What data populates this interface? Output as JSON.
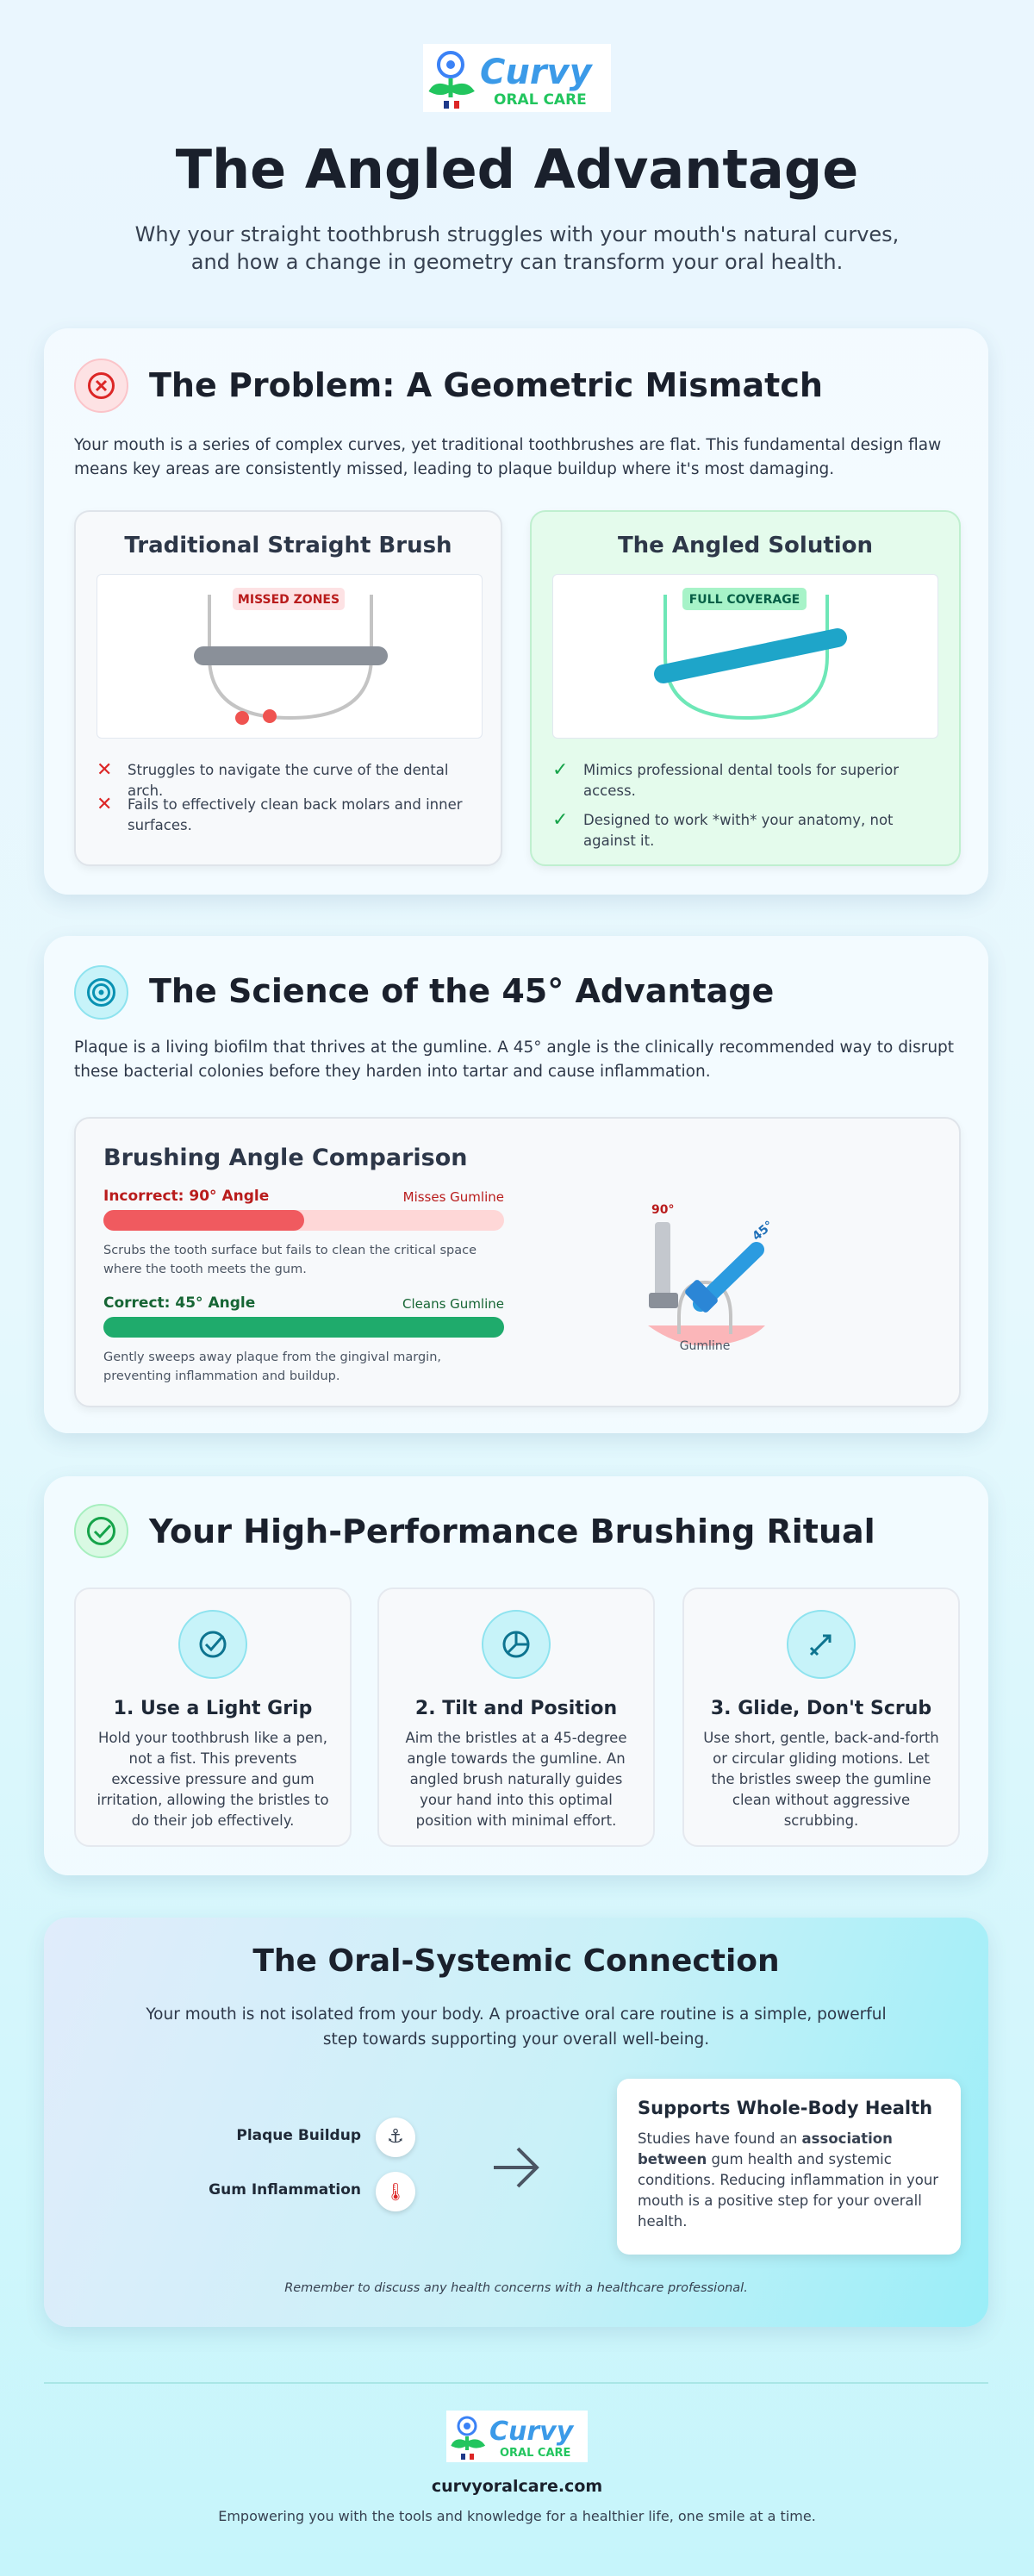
{
  "header": {
    "logo": {
      "brand": "Curvy",
      "sub": "ORAL CARE"
    },
    "title": "The Angled Advantage",
    "subtitle": [
      "Why your straight toothbrush struggles with your mouth's natural curves,",
      "and how a change in geometry can transform your oral health."
    ]
  },
  "problem": {
    "title": "The Problem: A Geometric Mismatch",
    "text": "Your mouth is a series of complex curves, yet traditional toothbrushes are flat. This fundamental design flaw means key areas are consistently missed, leading to plaque buildup where it's most damaging.",
    "traditional": {
      "title": "Traditional Straight Brush",
      "badge": "MISSED ZONES",
      "points": [
        "Struggles to navigate the curve of the dental arch.",
        "Fails to effectively clean back molars and inner surfaces."
      ]
    },
    "angled": {
      "title": "The Angled Solution",
      "badge": "FULL COVERAGE",
      "points": [
        "Mimics professional dental tools for superior access.",
        "Designed to work *with* your anatomy, not against it."
      ]
    }
  },
  "science": {
    "title": "The Science of the 45° Advantage",
    "text": "Plaque is a living biofilm that thrives at the gumline. A 45° angle is the clinically recommended way to disrupt these bacterial colonies before they harden into tartar and cause inflammation.",
    "comparison": {
      "title": "Brushing Angle Comparison",
      "incorrect": {
        "label": "Incorrect: 90° Angle",
        "note": "Misses Gumline",
        "description": "Scrubs the tooth surface but fails to clean the critical space where the tooth meets the gum."
      },
      "correct": {
        "label": "Correct: 45° Angle",
        "note": "Cleans Gumline",
        "description": "Gently sweeps away plaque from the gingival margin, preventing inflammation and buildup."
      },
      "diagram": {
        "angle90": "90°",
        "angle45": "45°",
        "gumline": "Gumline"
      }
    }
  },
  "ritual": {
    "title": "Your High-Performance Brushing Ritual",
    "steps": [
      {
        "title": "1. Use a Light Grip",
        "text": "Hold your toothbrush like a pen, not a fist. This prevents excessive pressure and gum irritation, allowing the bristles to do their job effectively."
      },
      {
        "title": "2. Tilt and Position",
        "text": "Aim the bristles at a 45-degree angle towards the gumline. An angled brush naturally guides your hand into this optimal position with minimal effort."
      },
      {
        "title": "3. Glide, Don't Scrub",
        "text": "Use short, gentle, back-and-forth or circular gliding motions. Let the bristles sweep the gumline clean without aggressive scrubbing."
      }
    ]
  },
  "connection": {
    "title": "The Oral-Systemic Connection",
    "text": "Your mouth is not isolated from your body. A proactive oral care routine is a simple, powerful step towards supporting your overall well-being.",
    "factors": [
      "Plaque Buildup",
      "Gum Inflammation"
    ],
    "result": {
      "title": "Supports Whole-Body Health",
      "text": [
        "Studies have found an ",
        "association between",
        " gum health and systemic conditions. Reducing inflammation in your mouth is a positive step for your overall health."
      ]
    },
    "note": "Remember to discuss any health concerns with a healthcare professional."
  },
  "footer": {
    "url": "curvyoralcare.com",
    "tagline": "Empowering you with the tools and knowledge for a healthier life, one smile at a time."
  }
}
